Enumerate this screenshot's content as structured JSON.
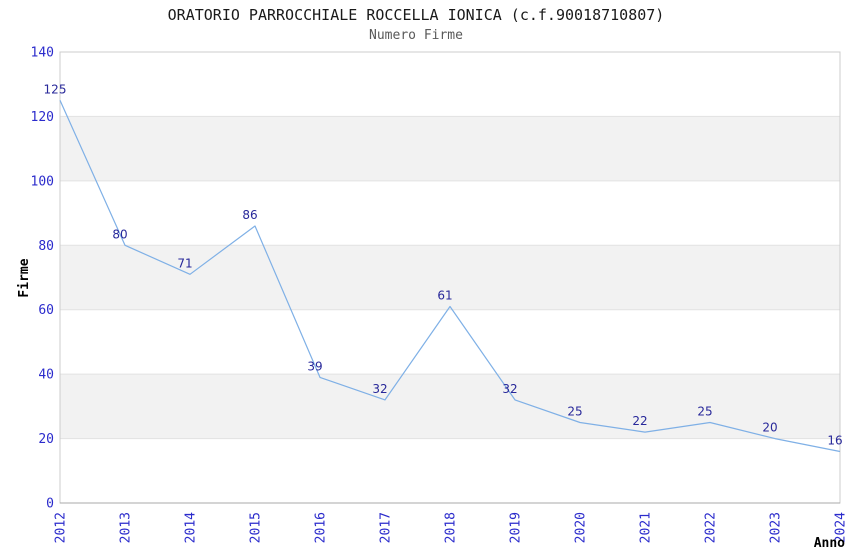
{
  "chart_data": {
    "type": "line",
    "title": "ORATORIO PARROCCHIALE ROCCELLA IONICA (c.f.90018710807)",
    "subtitle": "Numero Firme",
    "xlabel": "Anno",
    "ylabel": "Firme",
    "categories": [
      "2012",
      "2013",
      "2014",
      "2015",
      "2016",
      "2017",
      "2018",
      "2019",
      "2020",
      "2021",
      "2022",
      "2023",
      "2024"
    ],
    "series": [
      {
        "name": "Numero Firme",
        "values": [
          125,
          80,
          71,
          86,
          39,
          32,
          61,
          32,
          25,
          22,
          25,
          20,
          16
        ]
      }
    ],
    "ylim": [
      0,
      140
    ],
    "ytick_step": 20,
    "yticks": [
      0,
      20,
      40,
      60,
      80,
      100,
      120,
      140
    ],
    "grid": "horizontal-bands-alternating",
    "legend_position": "none",
    "point_labels_visible": true,
    "colors": {
      "line": "#7fb0e6",
      "point_label": "#28289a",
      "tick_label": "#2b2bcc",
      "axis_title": "#000000",
      "title": "#1a1a1a",
      "subtitle": "#595959",
      "band_gray": "#f2f2f2",
      "band_white": "#ffffff",
      "gridline": "#e2e2e2",
      "plot_border": "#cccccc",
      "axis_line": "#a8a8a8",
      "background": "#ffffff"
    }
  }
}
